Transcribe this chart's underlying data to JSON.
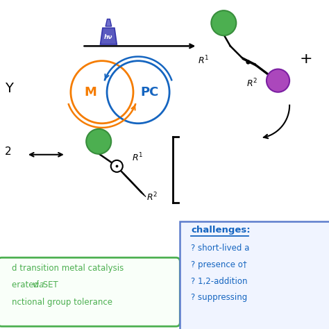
{
  "background_color": "#ffffff",
  "green_color": "#4caf50",
  "green_dark": "#388e3c",
  "purple_color": "#ab47bc",
  "orange_color": "#f57c00",
  "blue_color": "#1565c0",
  "arrow_color": "#000000",
  "green_box_border": "#4caf50",
  "blue_box_border": "#5c7ccc",
  "green_box_text": "#4caf50",
  "blue_box_text": "#1565c0",
  "green_box_lines": [
    "d transition metal catalysis",
    "erated via SET",
    "nctional group tolerance"
  ],
  "blue_box_lines": [
    "challenges:",
    "? short-lived a",
    "? presence o†",
    "? 1,2-addition",
    "? suppressing"
  ],
  "M_label": "M",
  "PC_label": "PC",
  "hv_label": "hν",
  "plus_label": "+"
}
